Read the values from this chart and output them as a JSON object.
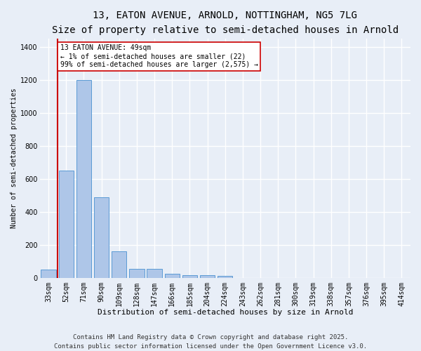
{
  "title1": "13, EATON AVENUE, ARNOLD, NOTTINGHAM, NG5 7LG",
  "title2": "Size of property relative to semi-detached houses in Arnold",
  "xlabel": "Distribution of semi-detached houses by size in Arnold",
  "ylabel": "Number of semi-detached properties",
  "categories": [
    "33sqm",
    "52sqm",
    "71sqm",
    "90sqm",
    "109sqm",
    "128sqm",
    "147sqm",
    "166sqm",
    "185sqm",
    "204sqm",
    "224sqm",
    "243sqm",
    "262sqm",
    "281sqm",
    "300sqm",
    "319sqm",
    "338sqm",
    "357sqm",
    "376sqm",
    "395sqm",
    "414sqm"
  ],
  "values": [
    50,
    650,
    1200,
    490,
    160,
    55,
    55,
    25,
    15,
    15,
    10,
    0,
    0,
    0,
    0,
    0,
    0,
    0,
    0,
    0,
    0
  ],
  "bar_color": "#aec6e8",
  "bar_edge_color": "#5b9bd5",
  "vline_x": 0.5,
  "vline_color": "#cc0000",
  "annotation_text": "13 EATON AVENUE: 49sqm\n← 1% of semi-detached houses are smaller (22)\n99% of semi-detached houses are larger (2,575) →",
  "annotation_box_color": "#ffffff",
  "annotation_box_edge_color": "#cc0000",
  "ylim": [
    0,
    1450
  ],
  "yticks": [
    0,
    200,
    400,
    600,
    800,
    1000,
    1200,
    1400
  ],
  "footer": "Contains HM Land Registry data © Crown copyright and database right 2025.\nContains public sector information licensed under the Open Government Licence v3.0.",
  "bg_color": "#e8eef7",
  "plot_bg_color": "#e8eef7",
  "grid_color": "#ffffff",
  "title1_fontsize": 10,
  "title2_fontsize": 9,
  "axis_fontsize": 7,
  "ylabel_fontsize": 7,
  "xlabel_fontsize": 8,
  "footer_fontsize": 6.5,
  "annotation_fontsize": 7
}
